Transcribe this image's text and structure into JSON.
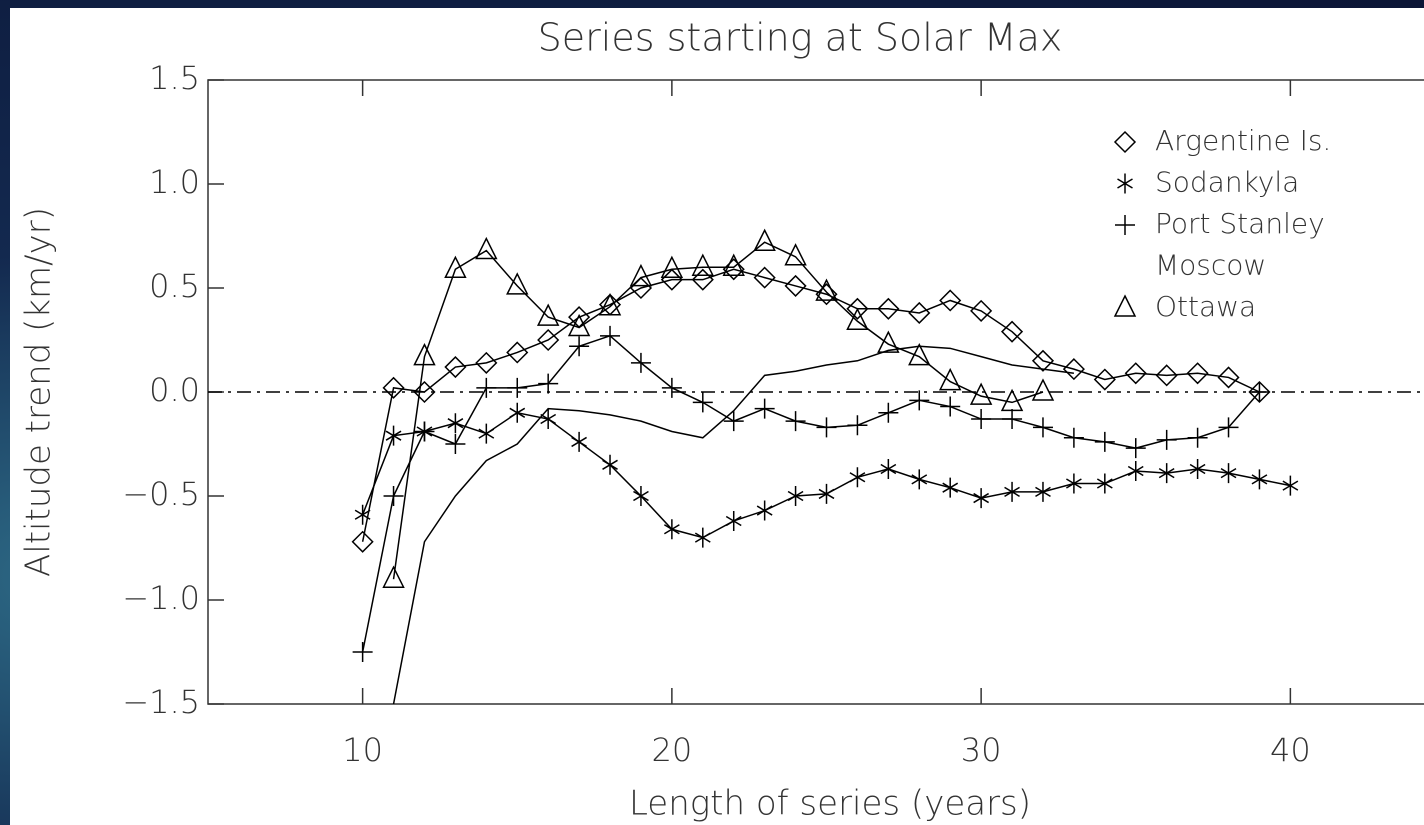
{
  "chart_data": {
    "type": "line",
    "title": "Series starting at Solar Max",
    "x_label": "Length of series (years)",
    "y_label": "Altitude trend (km/yr)",
    "xlim": [
      5,
      45
    ],
    "ylim": [
      -1.5,
      1.5
    ],
    "xticks": [
      10,
      20,
      30,
      40
    ],
    "yticks": [
      {
        "value": 1.5,
        "label": "1.5"
      },
      {
        "value": 1,
        "label": "1.0"
      },
      {
        "value": 0.5,
        "label": "0.5"
      },
      {
        "value": 0,
        "label": "0.0"
      },
      {
        "value": -0.5,
        "label": "−0.5"
      },
      {
        "value": -1,
        "label": "−1.0"
      },
      {
        "value": -1.5,
        "label": "−1.5"
      }
    ],
    "hline": {
      "value": 0,
      "style": "dash-dot"
    },
    "legend": "top-right",
    "series": [
      {
        "name": "Argentine Is.",
        "color": "#000000",
        "marker": "diamond",
        "x": [
          10,
          11,
          12,
          13,
          14,
          15,
          16,
          17,
          18,
          19,
          20,
          21,
          22,
          23,
          24,
          25,
          26,
          27,
          28,
          29,
          30,
          31,
          32,
          33,
          34,
          35,
          36,
          37,
          38,
          39
        ],
        "values": [
          -0.72,
          0.02,
          0.0,
          0.12,
          0.14,
          0.19,
          0.25,
          0.36,
          0.42,
          0.5,
          0.54,
          0.54,
          0.59,
          0.55,
          0.51,
          0.47,
          0.4,
          0.4,
          0.38,
          0.44,
          0.39,
          0.29,
          0.15,
          0.11,
          0.06,
          0.09,
          0.08,
          0.09,
          0.07,
          0.0
        ]
      },
      {
        "name": "Sodankyla",
        "color": "#000000",
        "marker": "asterisk",
        "x": [
          10,
          11,
          12,
          13,
          14,
          15,
          16,
          17,
          18,
          19,
          20,
          21,
          22,
          23,
          24,
          25,
          26,
          27,
          28,
          29,
          30,
          31,
          32,
          33,
          34,
          35,
          36,
          37,
          38,
          39,
          40
        ],
        "values": [
          -0.59,
          -0.21,
          -0.19,
          -0.15,
          -0.2,
          -0.1,
          -0.13,
          -0.24,
          -0.35,
          -0.5,
          -0.66,
          -0.7,
          -0.62,
          -0.57,
          -0.5,
          -0.49,
          -0.41,
          -0.37,
          -0.42,
          -0.46,
          -0.51,
          -0.48,
          -0.48,
          -0.44,
          -0.44,
          -0.38,
          -0.39,
          -0.37,
          -0.39,
          -0.42,
          -0.45
        ]
      },
      {
        "name": "Port Stanley",
        "color": "#000000",
        "marker": "plus",
        "x": [
          10,
          11,
          12,
          13,
          14,
          15,
          16,
          17,
          18,
          19,
          20,
          21,
          22,
          23,
          24,
          25,
          26,
          27,
          28,
          29,
          30,
          31,
          32,
          33,
          34,
          35,
          36,
          37,
          38,
          39
        ],
        "values": [
          -1.25,
          -0.5,
          -0.19,
          -0.25,
          0.02,
          0.02,
          0.04,
          0.22,
          0.27,
          0.14,
          0.02,
          -0.05,
          -0.14,
          -0.08,
          -0.14,
          -0.17,
          -0.16,
          -0.1,
          -0.04,
          -0.07,
          -0.13,
          -0.13,
          -0.17,
          -0.22,
          -0.24,
          -0.27,
          -0.23,
          -0.22,
          -0.17,
          0.0
        ]
      },
      {
        "name": "Moscow",
        "color": "#000000",
        "marker": "none",
        "x": [
          11,
          12,
          13,
          14,
          15,
          16,
          17,
          18,
          19,
          20,
          21,
          22,
          23,
          24,
          25,
          26,
          27,
          28,
          29,
          30,
          31,
          32,
          33
        ],
        "values": [
          -1.5,
          -0.72,
          -0.5,
          -0.33,
          -0.25,
          -0.08,
          -0.09,
          -0.11,
          -0.14,
          -0.19,
          -0.22,
          -0.09,
          0.08,
          0.1,
          0.13,
          0.15,
          0.2,
          0.22,
          0.21,
          0.17,
          0.13,
          0.11,
          0.09
        ]
      },
      {
        "name": "Ottawa",
        "color": "#000000",
        "marker": "triangle",
        "x": [
          11,
          12,
          13,
          14,
          15,
          16,
          17,
          18,
          19,
          20,
          21,
          22,
          23,
          24,
          25,
          26,
          27,
          28,
          29,
          30,
          31,
          32
        ],
        "values": [
          -0.9,
          0.17,
          0.59,
          0.68,
          0.51,
          0.36,
          0.31,
          0.41,
          0.55,
          0.59,
          0.6,
          0.6,
          0.72,
          0.65,
          0.48,
          0.34,
          0.23,
          0.17,
          0.05,
          -0.02,
          -0.05,
          0.0
        ]
      }
    ]
  }
}
